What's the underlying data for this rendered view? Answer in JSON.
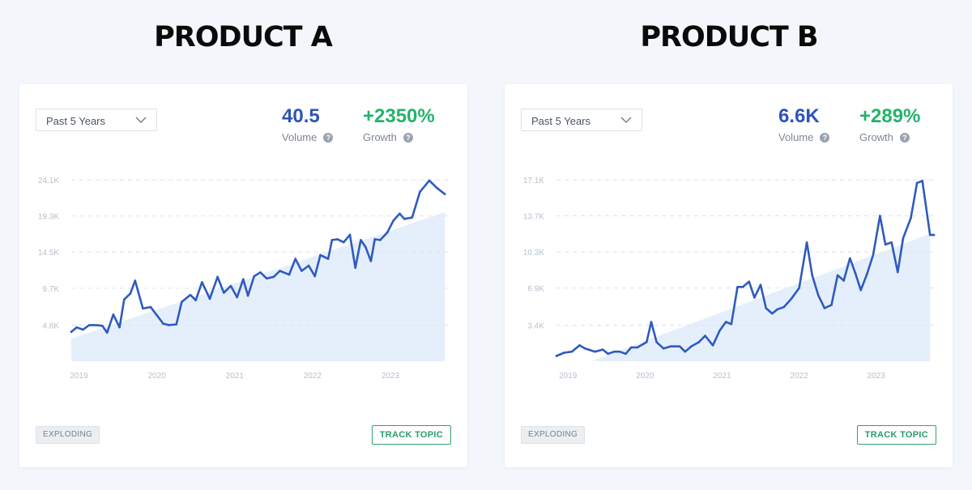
{
  "panels": [
    {
      "title": "PRODUCT A",
      "dropdown": "Past 5 Years",
      "volume_value": "40.5",
      "volume_label": "Volume",
      "growth_value": "+2350%",
      "growth_label": "Growth",
      "badge": "EXPLODING",
      "track_button": "TRACK TOPIC"
    },
    {
      "title": "PRODUCT B",
      "dropdown": "Past 5 Years",
      "volume_value": "6.6K",
      "volume_label": "Volume",
      "growth_value": "+289%",
      "growth_label": "Growth",
      "badge": "EXPLODING",
      "track_button": "TRACK TOPIC"
    }
  ],
  "colors": {
    "volume": "#2d55b8",
    "growth": "#25b36b",
    "line": "#2f5bbf",
    "area": "#dce9fa",
    "grid": "#dde3ea",
    "tick": "#b7c1cc"
  },
  "icons": {
    "dropdown": "chevron-down-icon",
    "help": "question-circle-icon"
  },
  "chart_data": [
    {
      "type": "line",
      "title": "PRODUCT A",
      "x_range": [
        2018.9,
        2023.75
      ],
      "ylim": [
        0,
        24100
      ],
      "y_ticks": [
        4800,
        9700,
        14500,
        19300,
        24100
      ],
      "y_tick_labels": [
        "4.8K",
        "9.7K",
        "14.5K",
        "19.3K",
        "24.1K"
      ],
      "x_ticks": [
        2019,
        2020,
        2021,
        2022,
        2023
      ],
      "x_tick_labels": [
        "2019",
        "2020",
        "2021",
        "2022",
        "2023"
      ],
      "grid": true,
      "trend_area": {
        "x": [
          2018.9,
          2023.7
        ],
        "y": [
          3000,
          19800
        ]
      },
      "series": [
        {
          "x": [
            2018.9,
            2018.97,
            2019.05,
            2019.13,
            2019.22,
            2019.3,
            2019.36,
            2019.44,
            2019.52,
            2019.58,
            2019.66,
            2019.72,
            2019.82,
            2019.92,
            2020.0,
            2020.08,
            2020.15,
            2020.25,
            2020.32,
            2020.43,
            2020.5,
            2020.58,
            2020.68,
            2020.78,
            2020.86,
            2020.95,
            2021.03,
            2021.11,
            2021.17,
            2021.25,
            2021.33,
            2021.41,
            2021.5,
            2021.58,
            2021.7,
            2021.78,
            2021.86,
            2021.95,
            2022.03,
            2022.1,
            2022.2,
            2022.25,
            2022.32,
            2022.4,
            2022.48,
            2022.55,
            2022.62,
            2022.68,
            2022.75,
            2022.8,
            2022.87,
            2022.96,
            2023.04,
            2023.12,
            2023.18,
            2023.28,
            2023.38,
            2023.5,
            2023.6,
            2023.7
          ],
          "y": [
            3900,
            4500,
            4200,
            4800,
            4800,
            4700,
            3800,
            6200,
            4500,
            8200,
            9000,
            10700,
            7000,
            7200,
            6100,
            5000,
            4800,
            4900,
            7900,
            8800,
            8100,
            10500,
            8300,
            11200,
            9100,
            10000,
            8500,
            10900,
            8700,
            11300,
            11800,
            11000,
            11200,
            12000,
            11500,
            13600,
            12000,
            12700,
            11300,
            14100,
            13600,
            16100,
            16200,
            15800,
            16800,
            12400,
            16100,
            15200,
            13300,
            16200,
            16100,
            17100,
            18700,
            19600,
            18900,
            19100,
            22500,
            24000,
            23000,
            22200
          ]
        }
      ]
    },
    {
      "type": "line",
      "title": "PRODUCT B",
      "x_range": [
        2018.85,
        2023.75
      ],
      "ylim": [
        0,
        17100
      ],
      "y_ticks": [
        3400,
        6900,
        10300,
        13700,
        17100
      ],
      "y_tick_labels": [
        "3.4K",
        "6.9K",
        "10.3K",
        "13.7K",
        "17.1K"
      ],
      "x_ticks": [
        2019,
        2020,
        2021,
        2022,
        2023
      ],
      "x_tick_labels": [
        "2019",
        "2020",
        "2021",
        "2022",
        "2023"
      ],
      "grid": true,
      "trend_area": {
        "x": [
          2019.3,
          2023.7
        ],
        "y": [
          0,
          12000
        ]
      },
      "series": [
        {
          "x": [
            2018.85,
            2018.95,
            2019.05,
            2019.15,
            2019.22,
            2019.35,
            2019.45,
            2019.52,
            2019.6,
            2019.67,
            2019.75,
            2019.82,
            2019.9,
            2020.02,
            2020.08,
            2020.15,
            2020.24,
            2020.33,
            2020.45,
            2020.52,
            2020.6,
            2020.7,
            2020.78,
            2020.88,
            2020.97,
            2021.05,
            2021.12,
            2021.2,
            2021.27,
            2021.35,
            2021.42,
            2021.5,
            2021.57,
            2021.65,
            2021.72,
            2021.8,
            2021.9,
            2022.0,
            2022.1,
            2022.17,
            2022.25,
            2022.33,
            2022.42,
            2022.5,
            2022.58,
            2022.66,
            2022.73,
            2022.8,
            2022.88,
            2022.96,
            2023.05,
            2023.12,
            2023.2,
            2023.28,
            2023.35,
            2023.45,
            2023.53,
            2023.6,
            2023.7,
            2023.75
          ],
          "y": [
            500,
            800,
            900,
            1500,
            1200,
            900,
            1100,
            700,
            900,
            900,
            700,
            1300,
            1300,
            1800,
            3700,
            1800,
            1200,
            1400,
            1400,
            900,
            1400,
            1800,
            2400,
            1500,
            2900,
            3700,
            3500,
            7000,
            7000,
            7500,
            6000,
            7200,
            5000,
            4500,
            4900,
            5100,
            5900,
            6900,
            11200,
            8100,
            6200,
            5000,
            5300,
            8100,
            7600,
            9700,
            8300,
            6700,
            8200,
            10000,
            13700,
            11000,
            11200,
            8400,
            11600,
            13500,
            16800,
            17000,
            11900,
            11900
          ]
        }
      ]
    }
  ]
}
